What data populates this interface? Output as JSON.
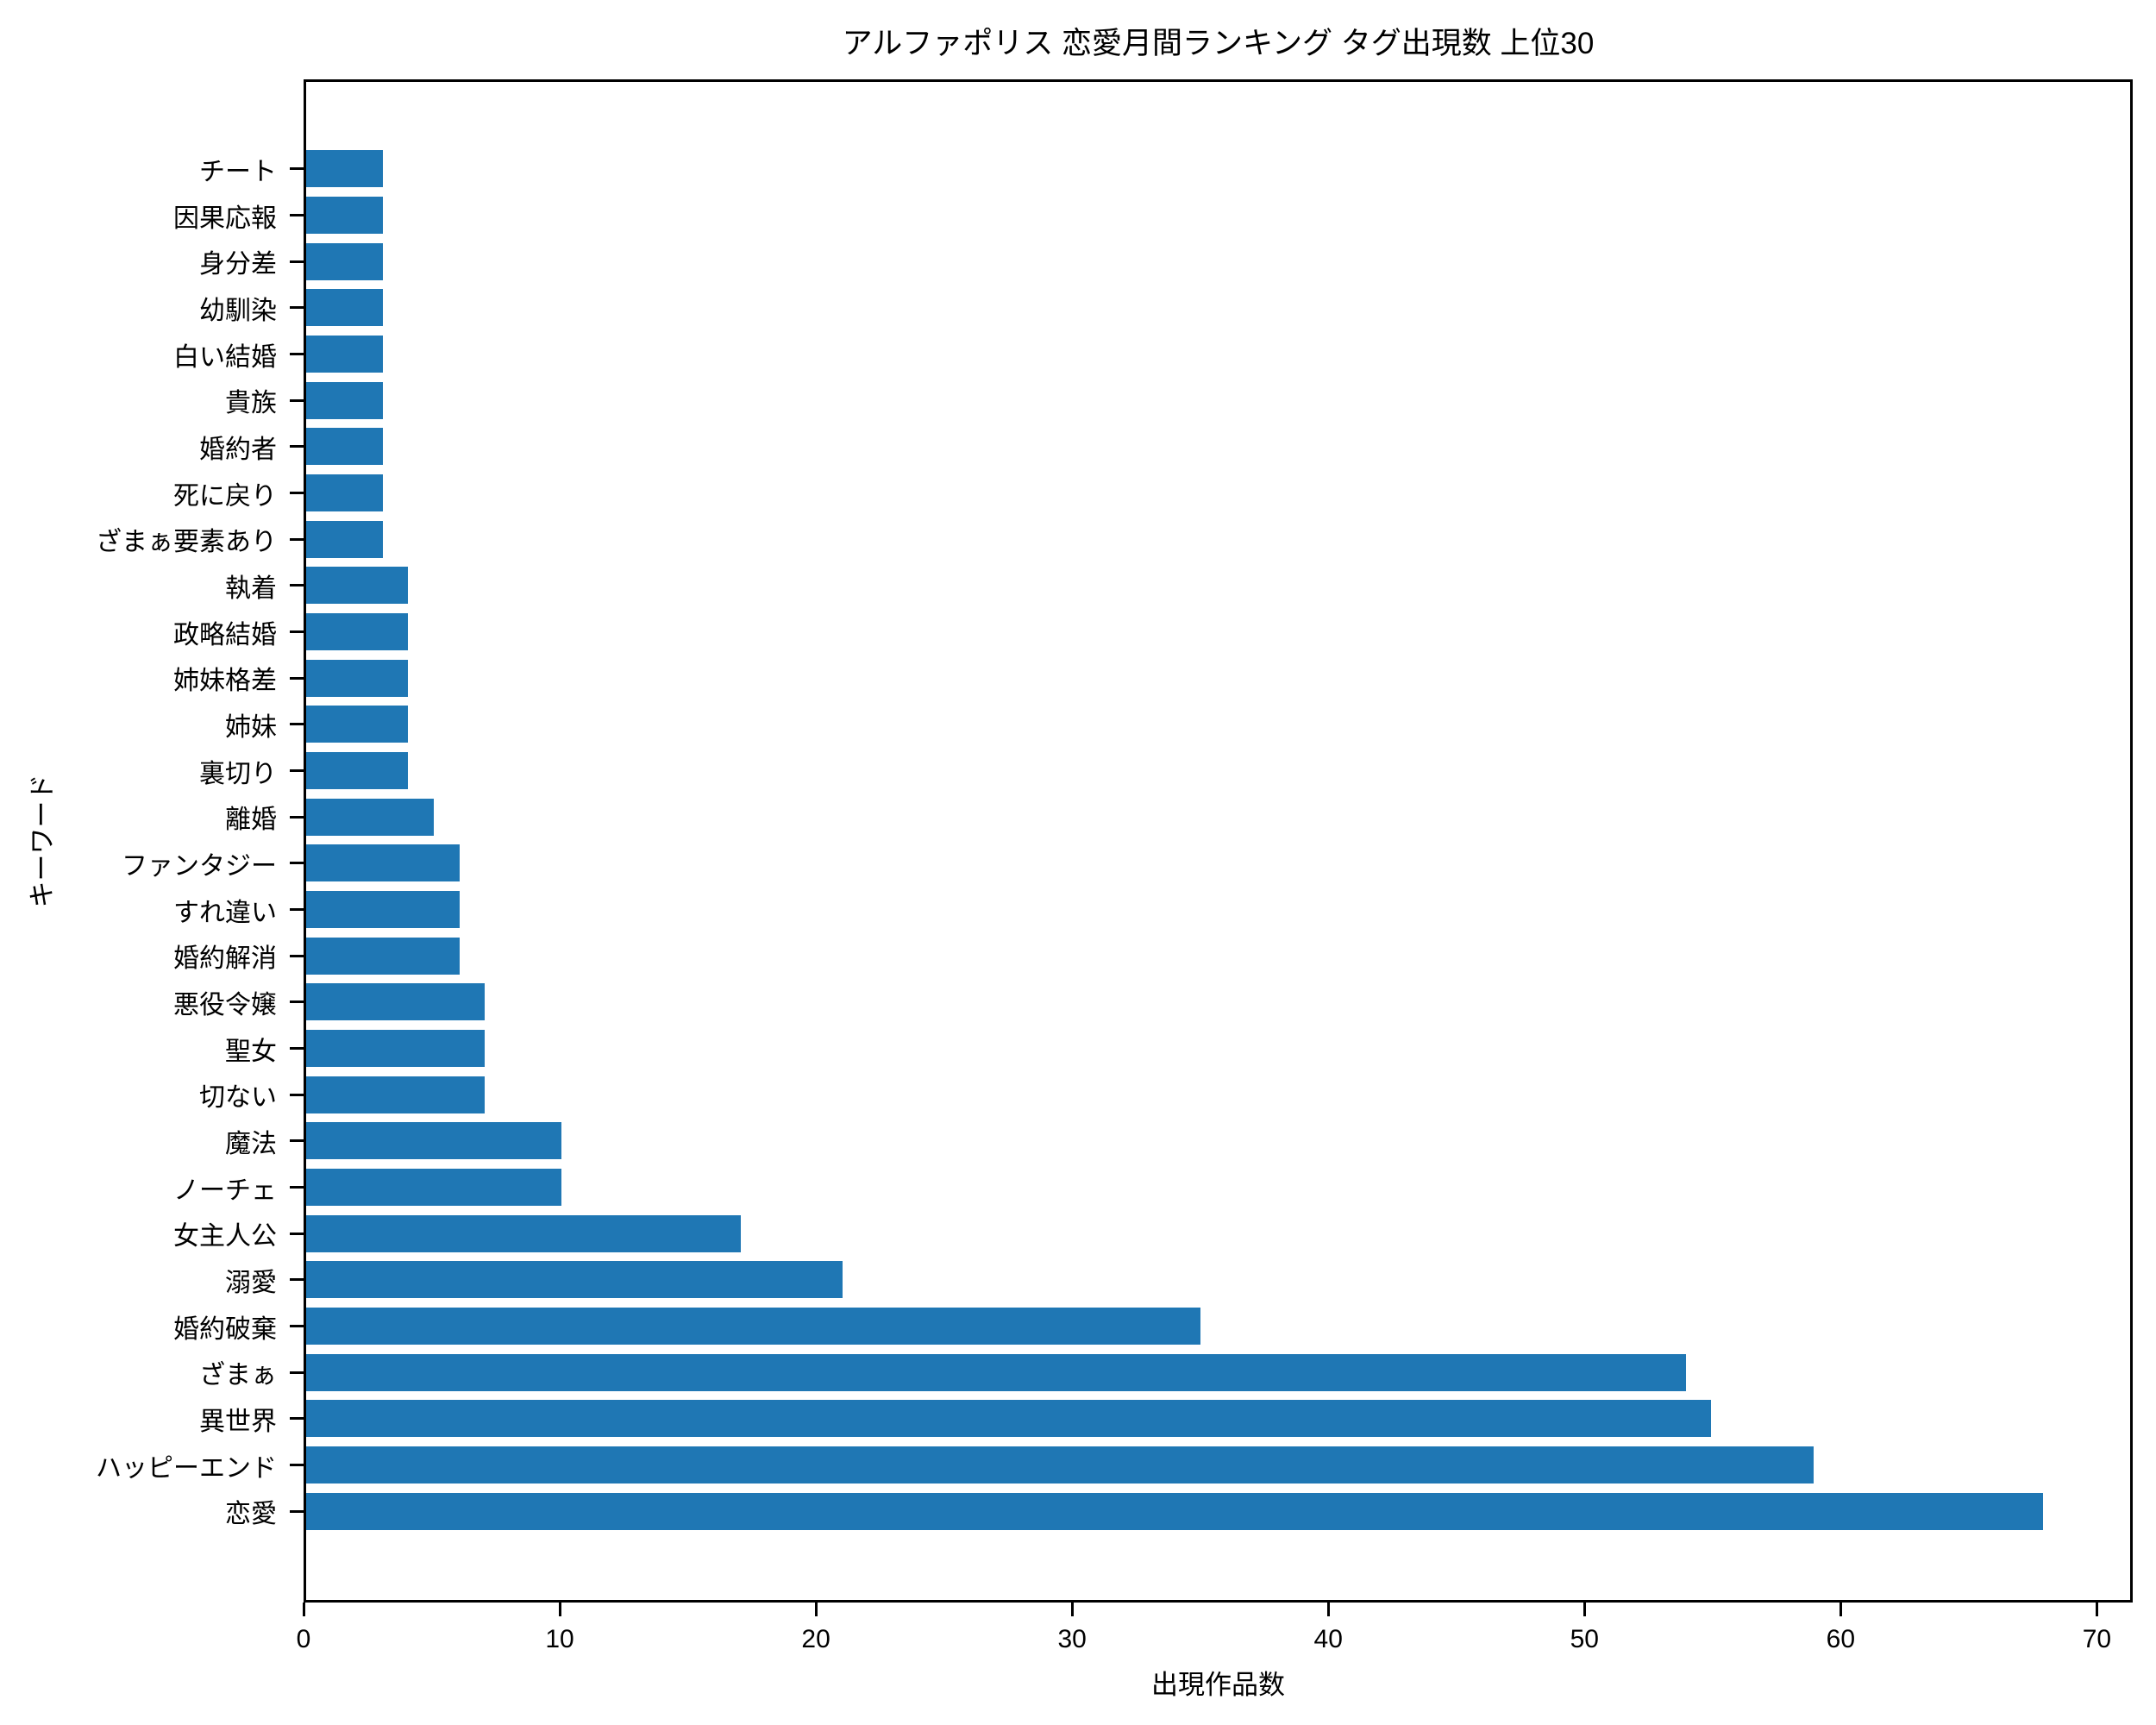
{
  "chart_data": {
    "type": "bar",
    "orientation": "horizontal",
    "title": "アルファポリス 恋愛月間ランキング タグ出現数 上位30",
    "xlabel": "出現作品数",
    "ylabel": "キーワード",
    "xlim": [
      0,
      71.4
    ],
    "xticks": [
      0,
      10,
      20,
      30,
      40,
      50,
      60,
      70
    ],
    "grid": false,
    "legend": "none",
    "bar_color": "#1f77b4",
    "categories_top_to_bottom": [
      "チート",
      "因果応報",
      "身分差",
      "幼馴染",
      "白い結婚",
      "貴族",
      "婚約者",
      "死に戻り",
      "ざまぁ要素あり",
      "執着",
      "政略結婚",
      "姉妹格差",
      "姉妹",
      "裏切り",
      "離婚",
      "ファンタジー",
      "すれ違い",
      "婚約解消",
      "悪役令嬢",
      "聖女",
      "切ない",
      "魔法",
      "ノーチェ",
      "女主人公",
      "溺愛",
      "婚約破棄",
      "ざまぁ",
      "異世界",
      "ハッピーエンド",
      "恋愛"
    ],
    "values_top_to_bottom": [
      3,
      3,
      3,
      3,
      3,
      3,
      3,
      3,
      3,
      4,
      4,
      4,
      4,
      4,
      5,
      6,
      6,
      6,
      7,
      7,
      7,
      10,
      10,
      17,
      21,
      35,
      54,
      55,
      59,
      68
    ]
  }
}
